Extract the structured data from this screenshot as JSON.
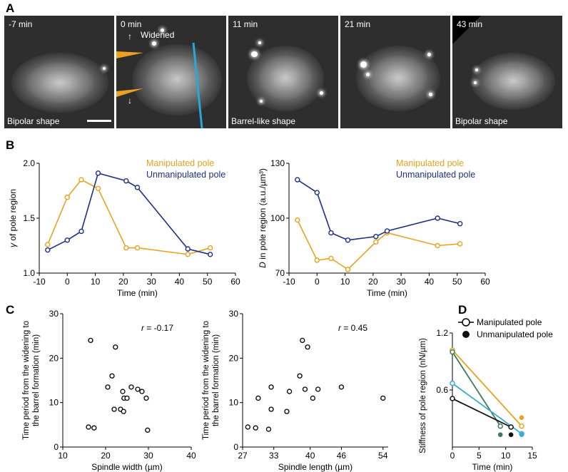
{
  "panel_labels": {
    "a": "A",
    "b": "B",
    "c": "C",
    "d": "D"
  },
  "panel_a": {
    "frames": [
      {
        "time": "-7 min",
        "caption": "Bipolar shape"
      },
      {
        "time": "0 min",
        "caption": "",
        "annotation": "Widened"
      },
      {
        "time": "11 min",
        "caption": "Barrel-like shape"
      },
      {
        "time": "21 min",
        "caption": ""
      },
      {
        "time": "43 min",
        "caption": "Bipolar shape"
      }
    ],
    "colors": {
      "pipette": "#f0a020",
      "line": "#2aa7d8"
    }
  },
  "chart_data": [
    {
      "id": "B-left",
      "type": "line",
      "xlabel": "Time (min)",
      "ylabel": "γ of pole region",
      "xlim": [
        -10,
        60
      ],
      "ylim": [
        1.0,
        2.0
      ],
      "xticks": [
        -10,
        0,
        10,
        20,
        30,
        40,
        50,
        60
      ],
      "yticks": [
        1.0,
        1.5,
        2.0
      ],
      "ytick_labels": [
        "1.0",
        "1.5",
        "2.0"
      ],
      "legend_position": "top-right",
      "series": [
        {
          "name": "Manipulated pole",
          "color": "#e9a21f",
          "x": [
            -7,
            0,
            5,
            11,
            21,
            25,
            43,
            51
          ],
          "y": [
            1.26,
            1.69,
            1.85,
            1.77,
            1.23,
            1.23,
            1.17,
            1.23
          ]
        },
        {
          "name": "Unmanipulated pole",
          "color": "#1c2f87",
          "x": [
            -7,
            0,
            5,
            11,
            21,
            25,
            43,
            51
          ],
          "y": [
            1.21,
            1.3,
            1.38,
            1.91,
            1.84,
            1.78,
            1.22,
            1.17
          ]
        }
      ]
    },
    {
      "id": "B-right",
      "type": "line",
      "xlabel": "Time (min)",
      "ylabel": "D in pole region (a.u./µm³)",
      "xlim": [
        -10,
        60
      ],
      "ylim": [
        70,
        130
      ],
      "xticks": [
        -10,
        0,
        10,
        20,
        30,
        40,
        50,
        60
      ],
      "yticks": [
        70,
        100,
        130
      ],
      "ytick_labels": [
        "70",
        "100",
        "130"
      ],
      "legend_position": "top-right",
      "series": [
        {
          "name": "Manipulated pole",
          "color": "#e9a21f",
          "x": [
            -7,
            0,
            5,
            11,
            21,
            25,
            43,
            51
          ],
          "y": [
            99,
            77,
            78,
            72,
            87,
            92,
            85,
            86
          ]
        },
        {
          "name": "Unmanipulated pole",
          "color": "#1c2f87",
          "x": [
            -7,
            0,
            5,
            11,
            21,
            25,
            43,
            51
          ],
          "y": [
            121,
            114,
            92,
            88,
            90,
            93,
            100,
            97
          ]
        }
      ]
    },
    {
      "id": "C-left",
      "type": "scatter",
      "xlabel": "Spindle width (µm)",
      "ylabel": "Time period from the widening to the barrel formation (min)",
      "xlim": [
        10,
        40
      ],
      "ylim": [
        0,
        30
      ],
      "xticks": [
        10,
        20,
        30,
        40
      ],
      "yticks": [
        0,
        10,
        20,
        30
      ],
      "annotation": "r = -0.17",
      "points": [
        [
          16,
          4.5
        ],
        [
          16.5,
          24
        ],
        [
          17.3,
          4.3
        ],
        [
          20.5,
          13.5
        ],
        [
          21.5,
          16
        ],
        [
          22,
          8.5
        ],
        [
          22.3,
          22.5
        ],
        [
          23.5,
          8.5
        ],
        [
          24,
          12.5
        ],
        [
          24.2,
          8
        ],
        [
          24.3,
          11
        ],
        [
          25,
          11
        ],
        [
          26,
          13.5
        ],
        [
          27.5,
          13
        ],
        [
          28.5,
          12.5
        ],
        [
          29.5,
          11
        ],
        [
          29.8,
          3.8
        ]
      ]
    },
    {
      "id": "C-right",
      "type": "scatter",
      "xlabel": "Spindle length (µm)",
      "ylabel": "Time period from the widening to the barrel formation (min)",
      "xlim": [
        27,
        55
      ],
      "ylim": [
        0,
        30
      ],
      "xticks": [
        27,
        33,
        40,
        46,
        54
      ],
      "yticks": [
        0,
        10,
        20,
        30
      ],
      "annotation": "r = 0.45",
      "points": [
        [
          28,
          4.5
        ],
        [
          29.5,
          4.3
        ],
        [
          30,
          11
        ],
        [
          32,
          4
        ],
        [
          32.5,
          13.5
        ],
        [
          32.5,
          8.5
        ],
        [
          35.5,
          8
        ],
        [
          36,
          12.5
        ],
        [
          38,
          16
        ],
        [
          38.5,
          24
        ],
        [
          39,
          13
        ],
        [
          39.5,
          22.5
        ],
        [
          40.5,
          11
        ],
        [
          41.5,
          13
        ],
        [
          46,
          13.5
        ],
        [
          54,
          11
        ]
      ]
    },
    {
      "id": "D",
      "type": "line",
      "xlabel": "Time (min)",
      "ylabel": "Stiffness of pole region (nN/µm)",
      "xlim": [
        0,
        15
      ],
      "ylim": [
        0,
        1.2
      ],
      "xticks": [
        0,
        5,
        10,
        15
      ],
      "yticks": [
        0.6,
        1.2
      ],
      "ytick_labels": [
        "0.6",
        "1.2"
      ],
      "legend": [
        {
          "name": "Manipulated pole",
          "marker": "open"
        },
        {
          "name": "Unmanipulated pole",
          "marker": "filled"
        }
      ],
      "series": [
        {
          "color": "#e9a21f",
          "manipulated": [
            [
              0,
              1.02
            ],
            [
              13,
              0.22
            ]
          ],
          "unmanipulated": [
            [
              13,
              0.31
            ]
          ]
        },
        {
          "color": "#3f7a5b",
          "manipulated": [
            [
              0,
              1.0
            ],
            [
              9,
              0.22
            ]
          ],
          "unmanipulated": [
            [
              9,
              0.13
            ]
          ]
        },
        {
          "color": "#3ca8d6",
          "manipulated": [
            [
              0,
              0.67
            ],
            [
              13,
              0.14
            ]
          ],
          "unmanipulated": [
            [
              13,
              0.13
            ]
          ]
        },
        {
          "color": "#111111",
          "manipulated": [
            [
              0,
              0.51
            ],
            [
              11,
              0.21
            ]
          ],
          "unmanipulated": [
            [
              11,
              0.13
            ]
          ]
        }
      ]
    }
  ]
}
